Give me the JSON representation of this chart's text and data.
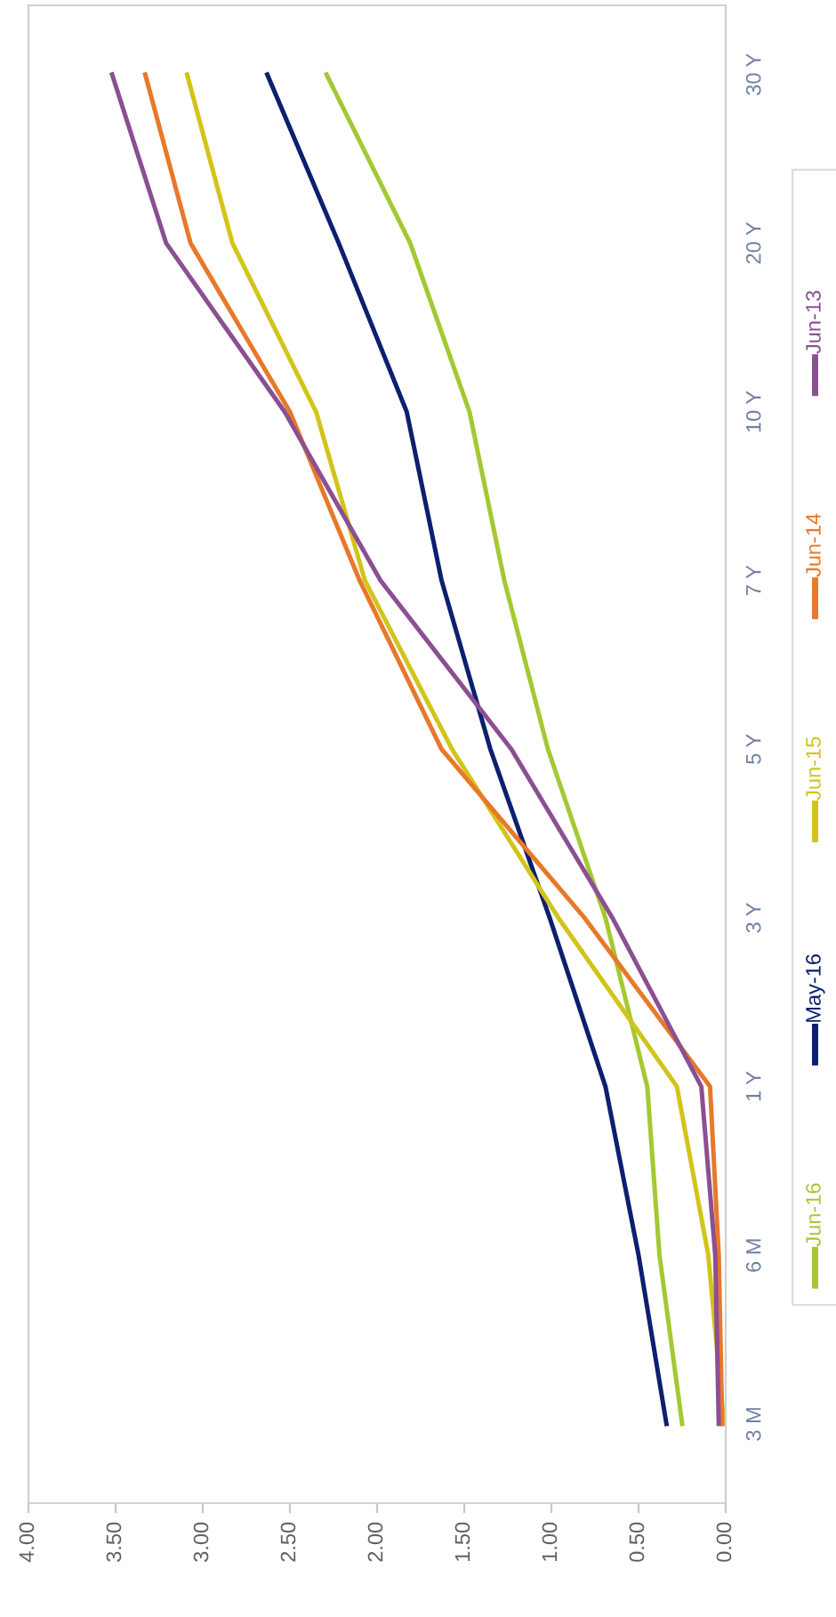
{
  "chart_data": {
    "type": "line",
    "categories": [
      "30 Y",
      "20 Y",
      "10 Y",
      "7 Y",
      "5 Y",
      "3 Y",
      "1 Y",
      "6 M",
      "3 M"
    ],
    "series": [
      {
        "name": "Jun-16",
        "color": "#a5c832",
        "values": [
          2.29,
          1.81,
          1.47,
          1.27,
          1.02,
          0.69,
          0.45,
          0.38,
          0.25
        ]
      },
      {
        "name": "May-16",
        "color": "#0d1f6e",
        "values": [
          2.63,
          2.22,
          1.83,
          1.63,
          1.35,
          1.01,
          0.69,
          0.5,
          0.34
        ]
      },
      {
        "name": "Jun-15",
        "color": "#d2c41a",
        "values": [
          3.09,
          2.83,
          2.35,
          2.07,
          1.57,
          0.96,
          0.28,
          0.1,
          0.01
        ]
      },
      {
        "name": "Jun-14",
        "color": "#e8782a",
        "values": [
          3.33,
          3.07,
          2.5,
          2.1,
          1.63,
          0.81,
          0.09,
          0.04,
          0.02
        ]
      },
      {
        "name": "Jun-13",
        "color": "#8b4f92",
        "values": [
          3.52,
          3.21,
          2.53,
          1.98,
          1.23,
          0.65,
          0.14,
          0.06,
          0.04
        ]
      }
    ],
    "orientation": "horizontal",
    "xlim": [
      4,
      0
    ],
    "xticks": [
      {
        "value": 0,
        "label": "0.00"
      },
      {
        "value": 0.5,
        "label": "0.50"
      },
      {
        "value": 1,
        "label": "1.00"
      },
      {
        "value": 1.5,
        "label": "1.50"
      },
      {
        "value": 2,
        "label": "2.00"
      },
      {
        "value": 2.5,
        "label": "2.50"
      },
      {
        "value": 3,
        "label": "3.00"
      },
      {
        "value": 3.5,
        "label": "3.50"
      },
      {
        "value": 4,
        "label": "4.00"
      }
    ],
    "grid": false,
    "legend": "right",
    "marker": "none",
    "line_style": "solid"
  }
}
